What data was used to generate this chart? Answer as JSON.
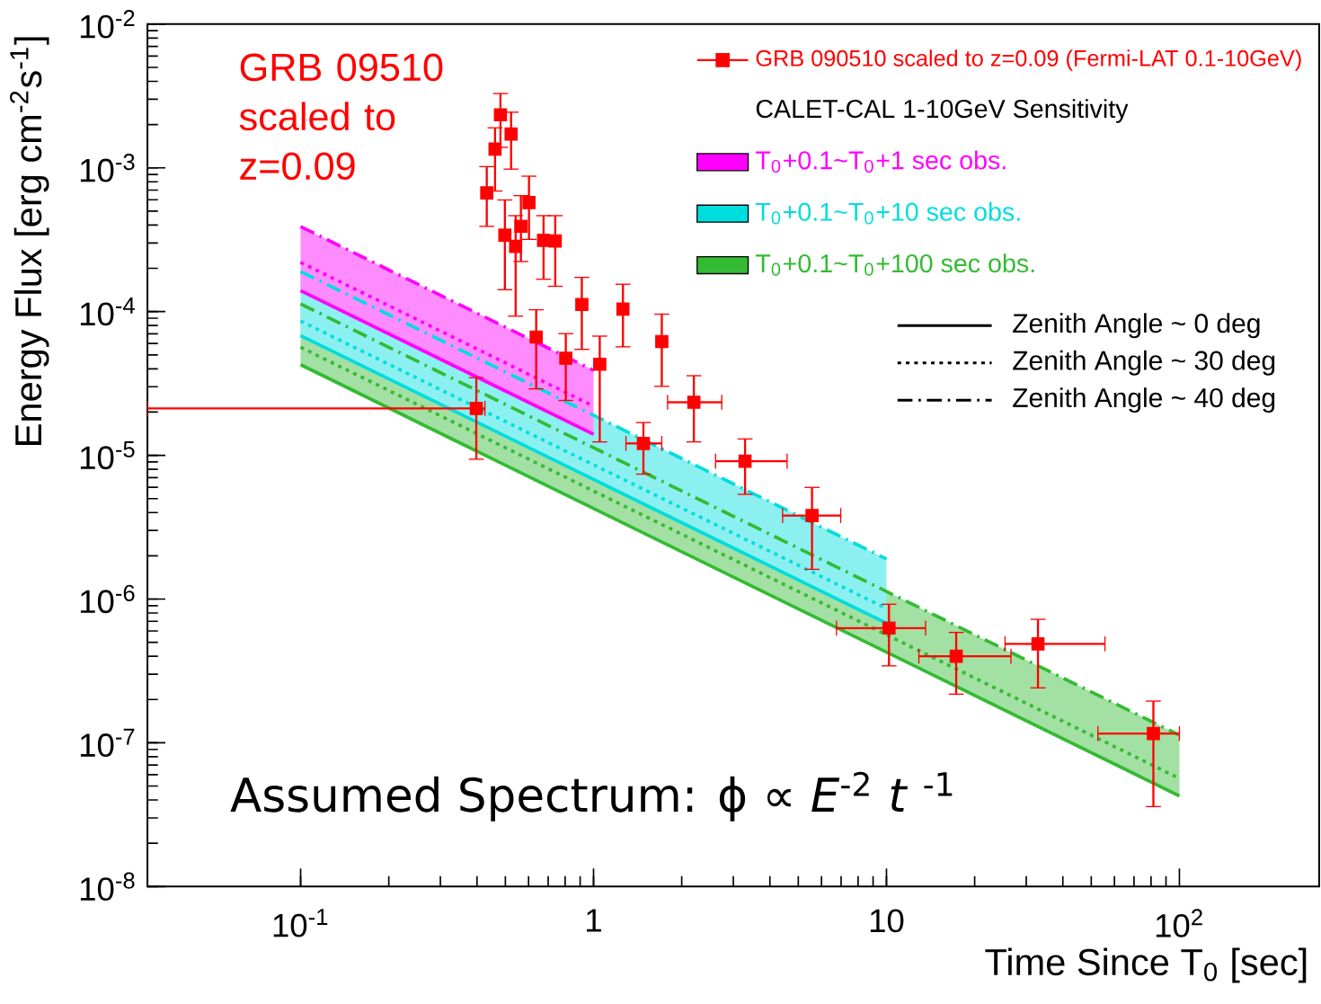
{
  "chart_data": {
    "type": "scatter",
    "xlabel": "Time Since T$_{0}$ [sec]",
    "ylabel": "Energy Flux [erg cm$^{-2}$s$^{-1}$]",
    "legend_title": "CALET-CAL 1-10GeV Sensitivity",
    "annotations": [
      {
        "text": "GRB 09510 scaled to z=0.09",
        "x": 0.481,
        "y": 0.00234
      },
      "Assumed Spectrum:  ϕ ∝ *E*$^{-2}$ *t* $^{-1}$",
      "Zenith Angle ~ 0 deg",
      "Zenith Angle ~ 30 deg",
      "Zenith Angle ~ 40 deg"
    ],
    "log": "xy",
    "grid": false,
    "legend": "top right",
    "marker": "square",
    "xlim": [
      0.03,
      300
    ],
    "ylim": [
      1e-08,
      0.01
    ],
    "xticks": [
      {
        "value": 0.1,
        "label": "10$^{-1}$"
      },
      1,
      10,
      {
        "value": 100,
        "label": "10$^{2}$"
      }
    ],
    "yticks": [
      {
        "value": 1e-08,
        "label": "10$^{-8}$"
      },
      {
        "value": 1e-07,
        "label": "10$^{-7}$"
      },
      {
        "value": 1e-06,
        "label": "10$^{-6}$"
      },
      {
        "value": 1e-05,
        "label": "10$^{-5}$"
      },
      {
        "value": 0.0001,
        "label": "10$^{-4}$"
      },
      {
        "value": 0.001,
        "label": "10$^{-3}$"
      },
      {
        "value": 0.01,
        "label": "10$^{-2}$"
      }
    ],
    "series": [
      {
        "name": "GRB 090510 scaled to z=0.09 (Fermi-LAT 0.1-10GeV)",
        "color": "#ff0000",
        "x": [
          0.398,
          0.432,
          0.461,
          0.481,
          0.498,
          0.523,
          0.542,
          0.565,
          0.602,
          0.637,
          0.675,
          0.74,
          0.804,
          0.912,
          1.05,
          1.26,
          1.48,
          1.71,
          2.2,
          3.29,
          5.57,
          10.2,
          17.3,
          32.9,
          81.5
        ],
        "values": [
          2.12e-05,
          0.00067,
          0.00135,
          0.00234,
          0.00034,
          0.00172,
          0.000284,
          0.000392,
          0.000573,
          6.65e-05,
          0.000313,
          0.00031,
          4.74e-05,
          0.000112,
          4.3e-05,
          0.000104,
          1.21e-05,
          6.19e-05,
          2.34e-05,
          9.1e-06,
          3.81e-06,
          6.28e-07,
          4e-07,
          4.88e-07,
          1.16e-07
        ],
        "errors": [
          [
            9.4e-06,
            3.47e-05
          ],
          [
            0.000392,
            0.00102
          ],
          [
            0.00069,
            0.0019
          ],
          [
            0.00139,
            0.00329
          ],
          [
            0.000142,
            0.000598
          ],
          [
            0.00098,
            0.00244
          ],
          [
            9.3e-05,
            0.000465
          ],
          [
            0.000223,
            0.000641
          ],
          [
            0.000318,
            0.000875
          ],
          [
            2.9e-05,
            0.000103
          ],
          [
            0.000168,
            0.000465
          ],
          [
            0.00015,
            0.000465
          ],
          [
            2.41e-05,
            7.03e-05
          ],
          [
            5.46e-05,
            0.000173
          ],
          [
            1.24e-05,
            6.75e-05
          ],
          [
            5.69e-05,
            0.000155
          ],
          [
            7.4e-06,
            1.69e-05
          ],
          [
            3.02e-05,
            9.6e-05
          ],
          [
            1.24e-05,
            3.58e-05
          ],
          [
            5.35e-06,
            1.3e-05
          ],
          [
            1.61e-06,
            5.98e-06
          ],
          [
            3.43e-07,
            9.2e-07
          ],
          [
            2.18e-07,
            5.86e-07
          ],
          [
            2.41e-07,
            7.23e-07
          ],
          [
            3.6e-08,
            1.95e-07
          ]
        ],
        "xerrors": [
          [
            0.03,
            0.426
          ],
          null,
          null,
          null,
          null,
          null,
          null,
          null,
          null,
          null,
          null,
          null,
          null,
          null,
          null,
          null,
          [
            1.29,
            1.71
          ],
          null,
          [
            1.79,
            2.74
          ],
          [
            2.61,
            4.58
          ],
          [
            4.42,
            6.98
          ],
          [
            6.75,
            13.6
          ],
          [
            12.9,
            26.6
          ],
          [
            25.4,
            55.7
          ],
          [
            52.7,
            100
          ]
        ]
      },
      {
        "name": "T$_{0}$+0.1~T$_{0}$+1 sec obs.",
        "type": "line",
        "marker": "none",
        "color": "#ff00ff",
        "line_style": "dotted",
        "x": [
          0.1,
          1
        ],
        "values": [
          0.00022,
          2.2e-05
        ],
        "lower": [
          0.00014,
          1.4e-05
        ],
        "upper": [
          0.00039,
          3.9e-05
        ]
      },
      {
        "name": "T$_{0}$+0.1~T$_{0}$+10 sec obs.",
        "type": "line",
        "marker": "none",
        "color": "#00dddd",
        "line_style": "dotted",
        "x": [
          0.1,
          10
        ],
        "values": [
          8.6e-05,
          8.6e-07
        ],
        "lower": [
          6.8e-05,
          6.8e-07
        ],
        "upper": [
          0.00019,
          1.9e-06
        ]
      },
      {
        "name": "T$_{0}$+0.1~T$_{0}$+100 sec obs.",
        "type": "line",
        "marker": "none",
        "color": "#33bb33",
        "line_style": "dotted",
        "x": [
          0.1,
          100
        ],
        "values": [
          5.65e-05,
          5.65e-08
        ],
        "lower": [
          4.27e-05,
          4.27e-08
        ],
        "upper": [
          0.000113,
          1.13e-07
        ]
      },
      {
        "type": "line",
        "marker": "none",
        "color": "#ff00ff",
        "line_style": "solid",
        "x": [
          0.1,
          1
        ],
        "values": [
          0.00014,
          1.4e-05
        ]
      },
      {
        "type": "line",
        "marker": "none",
        "color": "#ff00ff",
        "line_style": "dashed",
        "x": [
          0.1,
          1
        ],
        "values": [
          0.00039,
          3.9e-05
        ]
      },
      {
        "type": "line",
        "marker": "none",
        "color": "#00dddd",
        "line_style": "solid",
        "x": [
          0.1,
          10
        ],
        "values": [
          6.8e-05,
          6.8e-07
        ]
      },
      {
        "type": "line",
        "marker": "none",
        "color": "#00dddd",
        "line_style": "dashed",
        "x": [
          0.1,
          10
        ],
        "values": [
          0.00019,
          1.9e-06
        ]
      },
      {
        "type": "line",
        "marker": "none",
        "color": "#33bb33",
        "line_style": "solid",
        "x": [
          0.1,
          100
        ],
        "values": [
          4.27e-05,
          4.27e-08
        ]
      },
      {
        "type": "line",
        "marker": "none",
        "color": "#33bb33",
        "line_style": "dashed",
        "x": [
          0.1,
          100
        ],
        "values": [
          0.000113,
          1.13e-07
        ]
      }
    ]
  }
}
